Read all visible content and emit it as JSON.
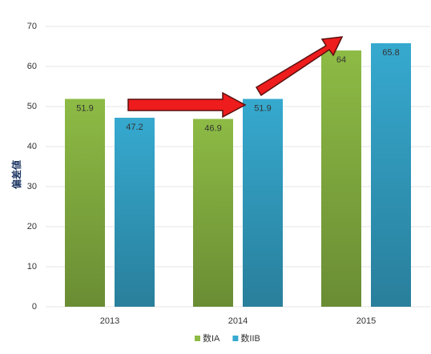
{
  "chart_data": {
    "type": "bar",
    "y_label": "偏差値",
    "categories": [
      "2013",
      "2014",
      "2015"
    ],
    "series": [
      {
        "name": "数IA",
        "color": "#8dbb45",
        "values": [
          51.9,
          46.9,
          64
        ]
      },
      {
        "name": "数IIB",
        "color": "#36a9cf",
        "values": [
          47.2,
          51.9,
          65.8
        ]
      }
    ],
    "ylim": [
      0,
      70
    ],
    "yticks": [
      0,
      10,
      20,
      30,
      40,
      50,
      60,
      70
    ],
    "grid": true,
    "legend": "bottom"
  }
}
